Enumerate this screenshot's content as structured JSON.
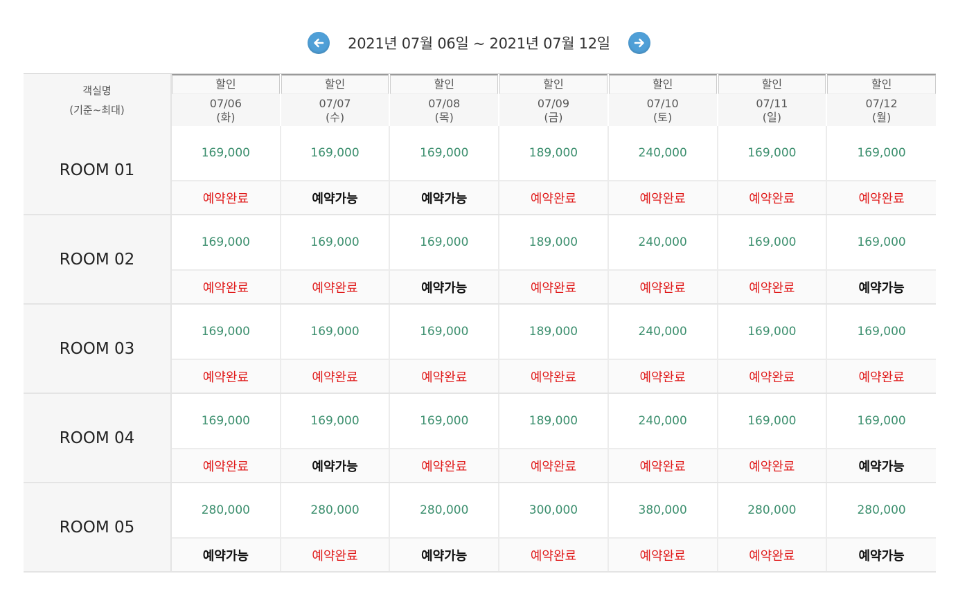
{
  "nav": {
    "range_text": "2021년 07월 06일 ~ 2021년 07월 12일",
    "prev_icon": "arrow-left-icon",
    "next_icon": "arrow-right-icon",
    "button_color": "#4f9fd7"
  },
  "header": {
    "room_col_title": "객실명",
    "room_col_sub": "(기준~최대)",
    "days": [
      {
        "label": "할인",
        "date": "07/06",
        "dow": "(화)"
      },
      {
        "label": "할인",
        "date": "07/07",
        "dow": "(수)"
      },
      {
        "label": "할인",
        "date": "07/08",
        "dow": "(목)"
      },
      {
        "label": "할인",
        "date": "07/09",
        "dow": "(금)"
      },
      {
        "label": "할인",
        "date": "07/10",
        "dow": "(토)"
      },
      {
        "label": "할인",
        "date": "07/11",
        "dow": "(일)"
      },
      {
        "label": "할인",
        "date": "07/12",
        "dow": "(월)"
      }
    ]
  },
  "status_labels": {
    "done": "예약완료",
    "open": "예약가능"
  },
  "colors": {
    "price": "#3c8f6e",
    "done": "#e01b1b",
    "open": "#111111"
  },
  "rooms": [
    {
      "name": "ROOM 01",
      "prices": [
        "169,000",
        "169,000",
        "169,000",
        "189,000",
        "240,000",
        "169,000",
        "169,000"
      ],
      "status": [
        "done",
        "open",
        "open",
        "done",
        "done",
        "done",
        "done"
      ]
    },
    {
      "name": "ROOM 02",
      "prices": [
        "169,000",
        "169,000",
        "169,000",
        "189,000",
        "240,000",
        "169,000",
        "169,000"
      ],
      "status": [
        "done",
        "done",
        "open",
        "done",
        "done",
        "done",
        "open"
      ]
    },
    {
      "name": "ROOM 03",
      "prices": [
        "169,000",
        "169,000",
        "169,000",
        "189,000",
        "240,000",
        "169,000",
        "169,000"
      ],
      "status": [
        "done",
        "done",
        "done",
        "done",
        "done",
        "done",
        "done"
      ]
    },
    {
      "name": "ROOM 04",
      "prices": [
        "169,000",
        "169,000",
        "169,000",
        "189,000",
        "240,000",
        "169,000",
        "169,000"
      ],
      "status": [
        "done",
        "open",
        "done",
        "done",
        "done",
        "done",
        "open"
      ]
    },
    {
      "name": "ROOM 05",
      "prices": [
        "280,000",
        "280,000",
        "280,000",
        "300,000",
        "380,000",
        "280,000",
        "280,000"
      ],
      "status": [
        "open",
        "done",
        "open",
        "done",
        "done",
        "done",
        "open"
      ]
    }
  ]
}
